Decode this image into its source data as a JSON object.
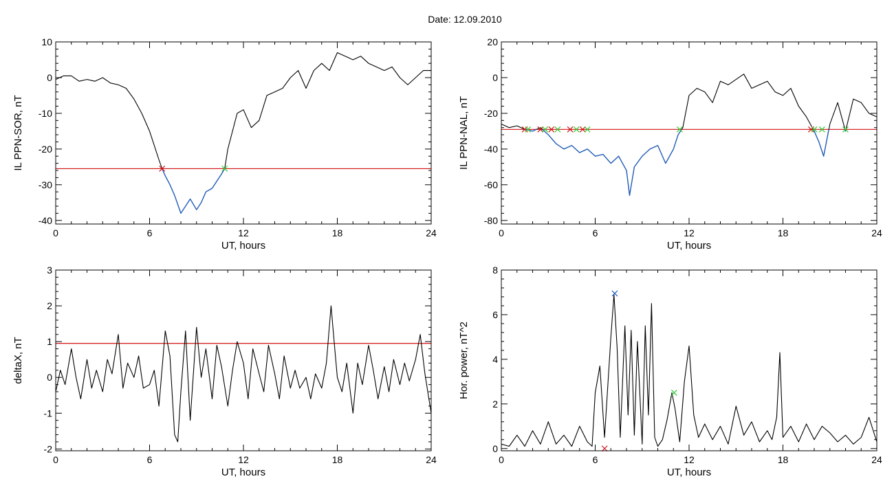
{
  "title": "Date:  12.09.2010",
  "colors": {
    "line": "#000000",
    "under": "#1f5fc0",
    "threshold": "#d01010",
    "red_cross": "#d01010",
    "green_cross": "#33cc33",
    "blue_cross": "#1f5fc0"
  },
  "chart_data": [
    {
      "type": "line",
      "ylabel": "IL PPN-SOR, nT",
      "xlabel": "UT, hours",
      "xlim": [
        0,
        24
      ],
      "ylim": [
        -41,
        10
      ],
      "xticks": [
        0,
        6,
        12,
        18,
        24
      ],
      "xtick_labels": [
        "0",
        "6",
        "12",
        "18",
        "24"
      ],
      "yticks": [
        10,
        0,
        -10,
        -20,
        -30,
        -40
      ],
      "ytick_labels": [
        "10",
        "0",
        "-10",
        "-20",
        "-30",
        "-40"
      ],
      "threshold": -25.5,
      "highlight_below_threshold": true,
      "series": [
        {
          "x": [
            0,
            0.5,
            1,
            1.5,
            2,
            2.5,
            3,
            3.5,
            4,
            4.5,
            5,
            5.5,
            6,
            6.3,
            6.6,
            6.8,
            7,
            7.3,
            7.6,
            8,
            8.3,
            8.6,
            9,
            9.3,
            9.6,
            10,
            10.3,
            10.6,
            10.8,
            11,
            11.3,
            11.6,
            12,
            12.5,
            13,
            13.5,
            14,
            14.5,
            15,
            15.5,
            16,
            16.5,
            17,
            17.5,
            18,
            18.5,
            19,
            19.5,
            20,
            20.5,
            21,
            21.5,
            22,
            22.5,
            23,
            23.5,
            24
          ],
          "y": [
            -0.5,
            0.5,
            0.5,
            -1,
            -0.5,
            -1,
            0,
            -1.5,
            -2,
            -3,
            -6,
            -10,
            -15,
            -19,
            -23,
            -25.5,
            -27.5,
            -30,
            -33,
            -38,
            -36,
            -34,
            -37,
            -35,
            -32,
            -31,
            -29,
            -27,
            -25.5,
            -20,
            -15,
            -10,
            -9,
            -14,
            -12,
            -5,
            -4,
            -3,
            0,
            2,
            -3,
            2,
            4,
            2,
            7,
            6,
            5,
            6,
            4,
            3,
            2,
            3,
            0,
            -2,
            0,
            2,
            2
          ]
        }
      ],
      "crossings": [
        {
          "x": 6.8,
          "y": -25.5,
          "color": "red"
        },
        {
          "x": 10.8,
          "y": -25.5,
          "color": "green"
        }
      ]
    },
    {
      "type": "line",
      "ylabel": "IL PPN-NAL, nT",
      "xlabel": "UT, hours",
      "xlim": [
        0,
        24
      ],
      "ylim": [
        -82,
        20
      ],
      "xticks": [
        0,
        6,
        12,
        18,
        24
      ],
      "xtick_labels": [
        "0",
        "6",
        "12",
        "18",
        "24"
      ],
      "yticks": [
        20,
        0,
        -20,
        -40,
        -60,
        -80
      ],
      "ytick_labels": [
        "20",
        "0",
        "-20",
        "-40",
        "-60",
        "-80"
      ],
      "threshold": -29,
      "highlight_below_threshold": true,
      "series": [
        {
          "x": [
            0,
            0.5,
            1,
            1.5,
            2,
            2.5,
            3,
            3.5,
            4,
            4.5,
            5,
            5.5,
            6,
            6.5,
            7,
            7.5,
            8,
            8.2,
            8.5,
            9,
            9.5,
            10,
            10.5,
            11,
            11.3,
            11.6,
            12,
            12.5,
            13,
            13.5,
            14,
            14.5,
            15,
            15.5,
            16,
            16.5,
            17,
            17.5,
            18,
            18.5,
            19,
            19.5,
            20,
            20.3,
            20.6,
            21,
            21.5,
            22,
            22.5,
            23,
            23.5,
            24
          ],
          "y": [
            -26,
            -28,
            -27,
            -29,
            -30,
            -28,
            -32,
            -37,
            -40,
            -38,
            -42,
            -40,
            -44,
            -43,
            -48,
            -44,
            -52,
            -66,
            -50,
            -44,
            -40,
            -38,
            -48,
            -40,
            -32,
            -28,
            -10,
            -6,
            -8,
            -14,
            -2,
            -4,
            -1,
            2,
            -6,
            -4,
            -2,
            -8,
            -10,
            -6,
            -16,
            -22,
            -30,
            -36,
            -44,
            -26,
            -14,
            -30,
            -12,
            -14,
            -20,
            -22
          ]
        }
      ],
      "crossings": [
        {
          "x": 1.5,
          "y": -29,
          "color": "red"
        },
        {
          "x": 1.7,
          "y": -29,
          "color": "green"
        },
        {
          "x": 2.5,
          "y": -29,
          "color": "red"
        },
        {
          "x": 2.8,
          "y": -29,
          "color": "green"
        },
        {
          "x": 3.2,
          "y": -29,
          "color": "red"
        },
        {
          "x": 3.6,
          "y": -29,
          "color": "green"
        },
        {
          "x": 4.4,
          "y": -29,
          "color": "red"
        },
        {
          "x": 4.8,
          "y": -29,
          "color": "green"
        },
        {
          "x": 5.2,
          "y": -29,
          "color": "red"
        },
        {
          "x": 5.5,
          "y": -29,
          "color": "green"
        },
        {
          "x": 11.4,
          "y": -29,
          "color": "green"
        },
        {
          "x": 19.8,
          "y": -29,
          "color": "red"
        },
        {
          "x": 20.0,
          "y": -29,
          "color": "green"
        },
        {
          "x": 20.5,
          "y": -29,
          "color": "green"
        },
        {
          "x": 22,
          "y": -29,
          "color": "green"
        }
      ]
    },
    {
      "type": "line",
      "ylabel": "deltaX, nT",
      "xlabel": "UT, hours",
      "xlim": [
        0,
        24
      ],
      "ylim": [
        -2.05,
        3
      ],
      "xticks": [
        0,
        6,
        12,
        18,
        24
      ],
      "xtick_labels": [
        "0",
        "6",
        "12",
        "18",
        "24"
      ],
      "yticks": [
        3,
        2,
        1,
        0,
        -1,
        -2
      ],
      "ytick_labels": [
        "3",
        "2",
        "1",
        "0",
        "-1",
        "-2"
      ],
      "threshold": 0.95,
      "highlight_below_threshold": false,
      "series": [
        {
          "x": [
            0,
            0.3,
            0.6,
            1,
            1.3,
            1.6,
            2,
            2.3,
            2.6,
            3,
            3.3,
            3.6,
            4,
            4.3,
            4.6,
            5,
            5.3,
            5.6,
            6,
            6.3,
            6.6,
            7,
            7.3,
            7.6,
            7.8,
            8,
            8.3,
            8.6,
            9,
            9.3,
            9.6,
            10,
            10.3,
            10.6,
            11,
            11.3,
            11.6,
            12,
            12.3,
            12.6,
            13,
            13.3,
            13.6,
            14,
            14.3,
            14.6,
            15,
            15.3,
            15.6,
            16,
            16.3,
            16.6,
            17,
            17.3,
            17.6,
            17.8,
            18,
            18.3,
            18.6,
            19,
            19.3,
            19.6,
            20,
            20.3,
            20.6,
            21,
            21.3,
            21.6,
            22,
            22.3,
            22.6,
            23,
            23.3,
            23.6,
            24
          ],
          "y": [
            -0.4,
            0.2,
            -0.2,
            0.8,
            0.0,
            -0.6,
            0.5,
            -0.3,
            0.2,
            -0.4,
            0.5,
            0.1,
            1.2,
            -0.3,
            0.4,
            0.0,
            0.6,
            -0.3,
            -0.2,
            0.2,
            -0.8,
            1.3,
            0.6,
            -1.6,
            -1.8,
            -0.4,
            1.3,
            -1.2,
            1.4,
            0.0,
            0.8,
            -0.6,
            0.9,
            0.3,
            -0.8,
            0.2,
            1.0,
            0.4,
            -0.6,
            0.8,
            0.1,
            -0.4,
            0.9,
            0.1,
            -0.6,
            0.6,
            -0.3,
            0.2,
            -0.3,
            0.0,
            -0.6,
            0.1,
            -0.3,
            0.4,
            2.0,
            1.0,
            0.0,
            -0.4,
            0.4,
            -1.0,
            0.4,
            -0.2,
            0.9,
            0.2,
            -0.6,
            0.3,
            -0.4,
            0.5,
            -0.2,
            0.4,
            -0.1,
            0.5,
            1.2,
            0.1,
            -1.0
          ]
        }
      ],
      "crossings": []
    },
    {
      "type": "line",
      "ylabel": "Hor. power, nT^2",
      "xlabel": "UT, hours",
      "xlim": [
        0,
        24
      ],
      "ylim": [
        -0.1,
        8
      ],
      "xticks": [
        0,
        6,
        12,
        18,
        24
      ],
      "xtick_labels": [
        "0",
        "6",
        "12",
        "18",
        "24"
      ],
      "yticks": [
        8,
        6,
        4,
        2,
        0
      ],
      "ytick_labels": [
        "8",
        "6",
        "4",
        "2",
        "0"
      ],
      "threshold": null,
      "highlight_below_threshold": false,
      "series": [
        {
          "x": [
            0,
            0.5,
            1,
            1.5,
            2,
            2.5,
            3,
            3.5,
            4,
            4.5,
            5,
            5.5,
            5.8,
            6,
            6.3,
            6.6,
            7,
            7.2,
            7.4,
            7.6,
            7.9,
            8.1,
            8.3,
            8.5,
            8.7,
            9,
            9.2,
            9.4,
            9.6,
            9.8,
            10,
            10.3,
            10.6,
            10.9,
            11.1,
            11.4,
            11.7,
            12,
            12.3,
            12.6,
            13,
            13.5,
            14,
            14.5,
            15,
            15.5,
            16,
            16.5,
            17,
            17.3,
            17.6,
            17.8,
            18,
            18.5,
            19,
            19.5,
            20,
            20.5,
            21,
            21.5,
            22,
            22.5,
            23,
            23.5,
            24
          ],
          "y": [
            0.2,
            0.1,
            0.6,
            0.1,
            0.8,
            0.2,
            1.2,
            0.2,
            0.6,
            0.1,
            1.0,
            0.3,
            0.1,
            2.5,
            3.7,
            0.5,
            5.0,
            6.9,
            4.5,
            0.5,
            5.5,
            1.5,
            5.3,
            0.6,
            4.8,
            0.2,
            5.5,
            1.5,
            6.5,
            0.5,
            0.1,
            0.4,
            1.3,
            2.5,
            1.8,
            0.3,
            3.0,
            4.6,
            1.5,
            0.5,
            1.1,
            0.4,
            1.0,
            0.2,
            1.9,
            0.6,
            1.2,
            0.3,
            0.8,
            0.4,
            1.4,
            4.3,
            0.5,
            1.0,
            0.3,
            1.1,
            0.4,
            1.0,
            0.7,
            0.3,
            0.6,
            0.2,
            0.5,
            1.4,
            0.3
          ]
        }
      ],
      "crossings": [
        {
          "x": 7.25,
          "y": 6.95,
          "color": "blue"
        },
        {
          "x": 11.05,
          "y": 2.5,
          "color": "green"
        },
        {
          "x": 6.6,
          "y": 0.0,
          "color": "red"
        }
      ]
    }
  ]
}
